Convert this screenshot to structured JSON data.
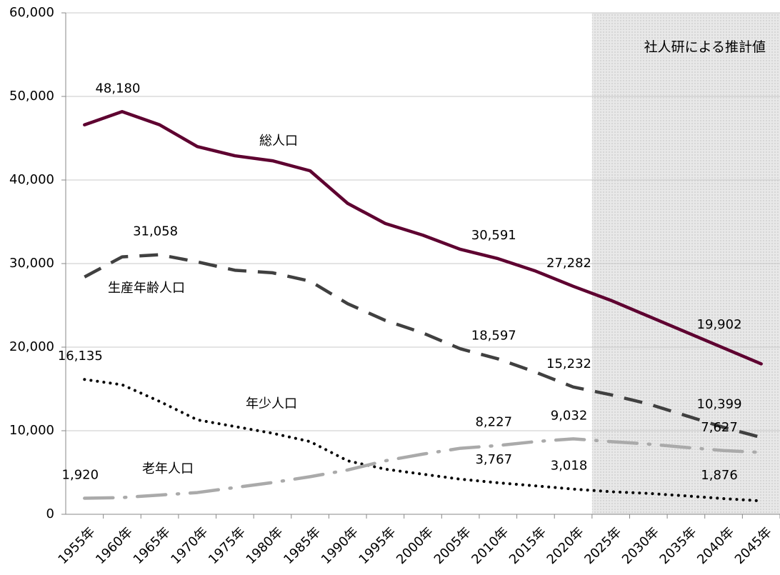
{
  "chart_data": {
    "type": "line",
    "annotation": "社人研による推計値",
    "categories": [
      "1955年",
      "1960年",
      "1965年",
      "1970年",
      "1975年",
      "1980年",
      "1985年",
      "1990年",
      "1995年",
      "2000年",
      "2005年",
      "2010年",
      "2015年",
      "2020年",
      "2025年",
      "2030年",
      "2035年",
      "2040年",
      "2045年"
    ],
    "series": [
      {
        "name": "総人口",
        "color": "#5e0030",
        "values": [
          46600,
          48180,
          46600,
          44000,
          42900,
          42300,
          41100,
          37200,
          34800,
          33400,
          31700,
          30591,
          29100,
          27282,
          25600,
          23700,
          21800,
          19902,
          18000
        ],
        "value_labels": [
          null,
          "48,180",
          null,
          null,
          null,
          null,
          null,
          null,
          null,
          null,
          null,
          "30,591",
          null,
          "27,282",
          null,
          null,
          null,
          "19,902",
          null
        ]
      },
      {
        "name": "生産年齢人口",
        "color": "#404040",
        "values": [
          28400,
          30800,
          31058,
          30200,
          29200,
          28900,
          27900,
          25200,
          23200,
          21700,
          19800,
          18597,
          17000,
          15232,
          14300,
          13200,
          11800,
          10399,
          9200
        ],
        "value_labels": [
          null,
          null,
          "31,058",
          null,
          null,
          null,
          null,
          null,
          null,
          null,
          null,
          "18,597",
          null,
          "15,232",
          null,
          null,
          null,
          "10,399",
          null
        ]
      },
      {
        "name": "年少人口",
        "color": "#000000",
        "values": [
          16135,
          15500,
          13500,
          11300,
          10500,
          9700,
          8700,
          6400,
          5400,
          4800,
          4200,
          3767,
          3400,
          3018,
          2700,
          2500,
          2200,
          1876,
          1600
        ],
        "value_labels": [
          "16,135",
          null,
          null,
          null,
          null,
          null,
          null,
          null,
          null,
          null,
          null,
          "3,767",
          null,
          "3,018",
          null,
          null,
          null,
          "1,876",
          null
        ]
      },
      {
        "name": "老年人口",
        "color": "#aaaaaa",
        "values": [
          1920,
          2000,
          2300,
          2600,
          3200,
          3800,
          4500,
          5300,
          6400,
          7200,
          7900,
          8227,
          8700,
          9032,
          8700,
          8400,
          8000,
          7627,
          7400
        ],
        "value_labels": [
          "1,920",
          null,
          null,
          null,
          null,
          null,
          null,
          null,
          null,
          null,
          null,
          "8,227",
          null,
          "9,032",
          null,
          null,
          null,
          "7,627",
          null
        ]
      }
    ],
    "ylim": [
      0,
      60000
    ],
    "yticks": [
      0,
      {
        "value": 10000,
        "label": "10,000"
      },
      {
        "value": 20000,
        "label": "20,000"
      },
      {
        "value": 30000,
        "label": "30,000"
      },
      {
        "value": 40000,
        "label": "40,000"
      },
      {
        "value": 50000,
        "label": "50,000"
      },
      {
        "value": 60000,
        "label": "60,000"
      }
    ],
    "grid": true
  }
}
